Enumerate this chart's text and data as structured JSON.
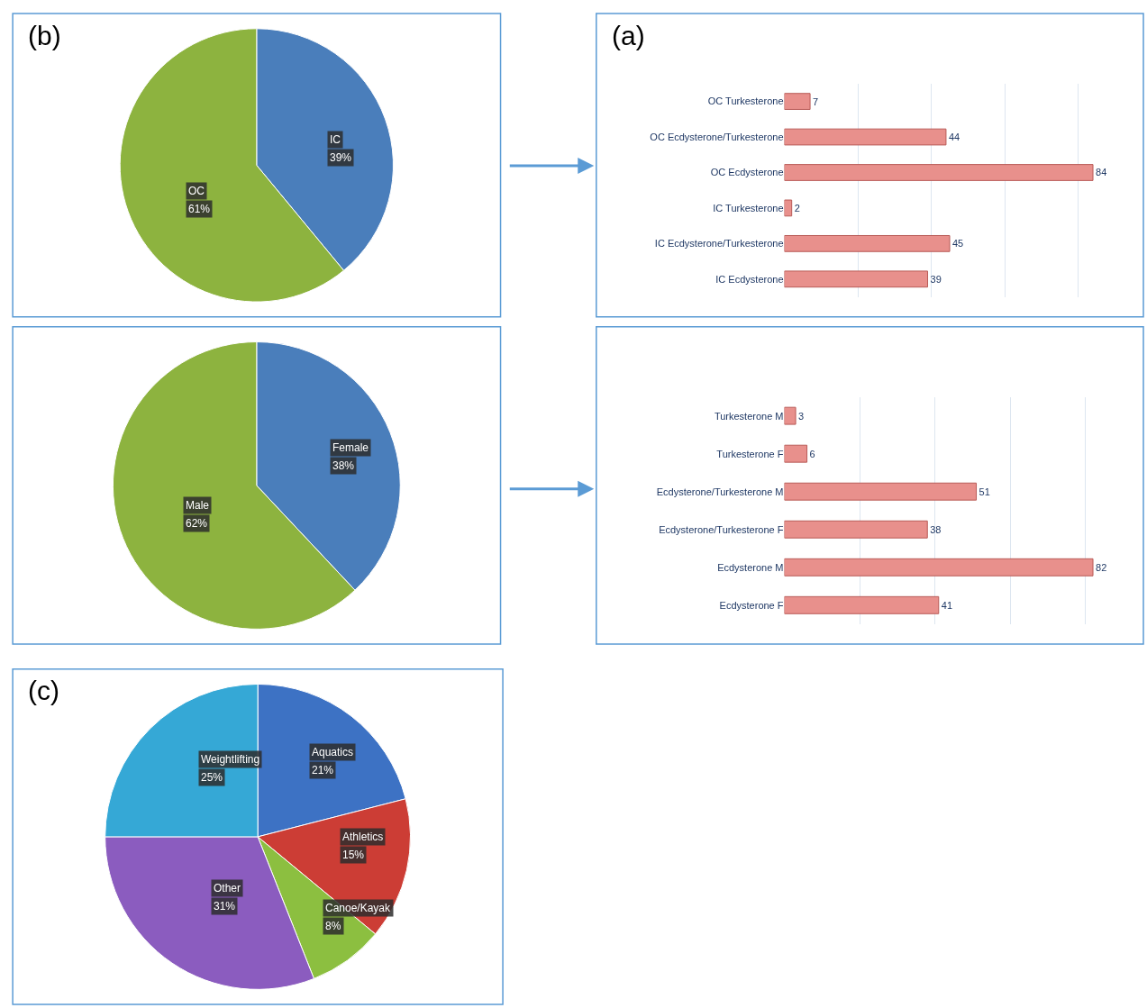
{
  "chart_data": [
    {
      "type": "pie",
      "title": "(b)",
      "categories": [
        "IC",
        "OC"
      ],
      "values": [
        39,
        61
      ],
      "colors": [
        "#4a7ebb",
        "#8db33f"
      ],
      "value_labels": [
        "39%",
        "61%"
      ]
    },
    {
      "type": "bar",
      "title": "(a)",
      "orientation": "horizontal",
      "categories": [
        "OC Turkesterone",
        "OC Ecdysterone/Turkesterone",
        "OC Ecdysterone",
        "IC Turkesterone",
        "IC Ecdysterone/Turkesterone",
        "IC Ecdysterone"
      ],
      "values": [
        7,
        44,
        84,
        2,
        45,
        39
      ],
      "color": "#e8908c",
      "data_labels": true,
      "grid": "x",
      "tick_labels": "y"
    },
    {
      "type": "pie",
      "categories": [
        "Female",
        "Male"
      ],
      "values": [
        38,
        62
      ],
      "colors": [
        "#4a7ebb",
        "#8db33f"
      ],
      "value_labels": [
        "38%",
        "62%"
      ]
    },
    {
      "type": "bar",
      "orientation": "horizontal",
      "categories": [
        "Turkesterone M",
        "Turkesterone F",
        "Ecdysterone/Turkesterone M",
        "Ecdysterone/Turkesterone F",
        "Ecdysterone M",
        "Ecdysterone F"
      ],
      "values": [
        3,
        6,
        51,
        38,
        82,
        41
      ],
      "color": "#e8908c",
      "data_labels": true,
      "grid": "x",
      "tick_labels": "y"
    },
    {
      "type": "pie",
      "title": "(c)",
      "categories": [
        "Aquatics",
        "Athletics",
        "Canoe/Kayak",
        "Other",
        "Weightlifting"
      ],
      "values": [
        21,
        15,
        8,
        31,
        25
      ],
      "colors": [
        "#3d72c4",
        "#cc3d35",
        "#8cbf40",
        "#8b5cbf",
        "#35a8d6"
      ],
      "value_labels": [
        "21%",
        "15%",
        "8%",
        "31%",
        "25%"
      ]
    }
  ]
}
